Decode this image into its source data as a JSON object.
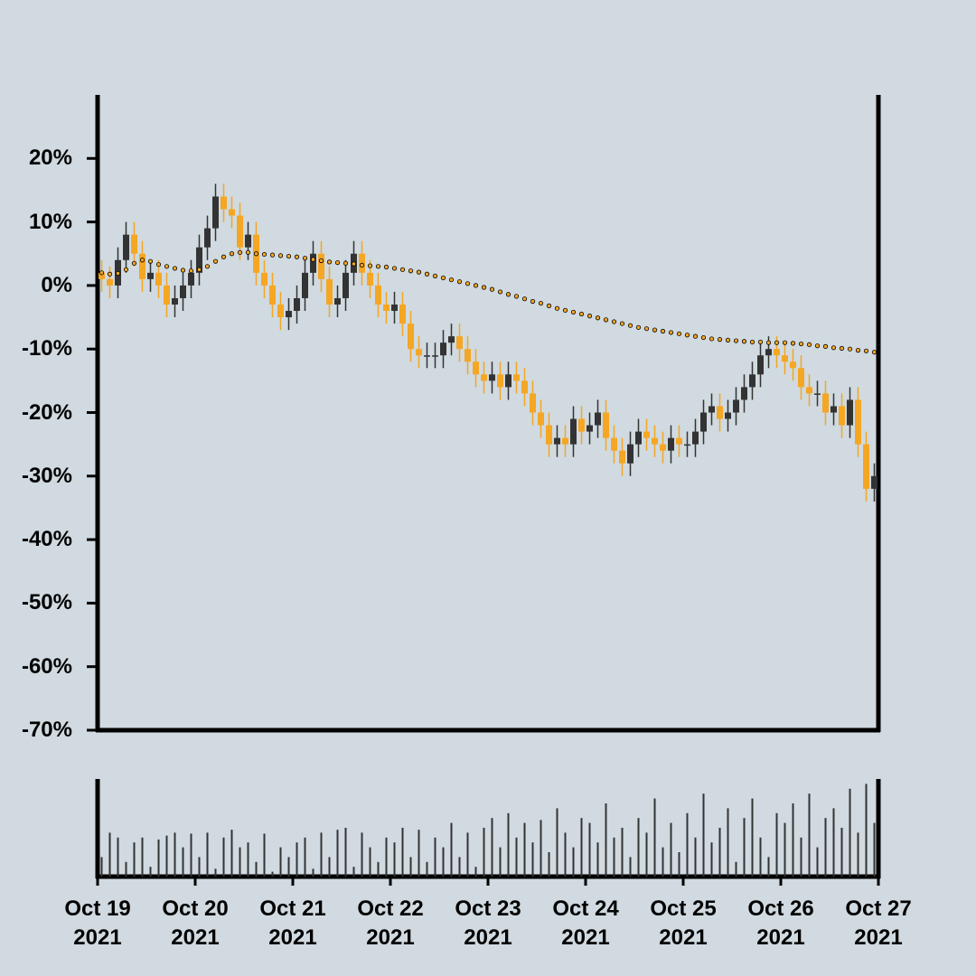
{
  "chart_data": {
    "type": "candlestick",
    "up_color": "#333333",
    "down_color": "#f5a623",
    "ma_color": "#f5a623",
    "volume_color": "#333333",
    "ylim": [
      -70,
      30
    ],
    "yticks": [
      {
        "value": 20,
        "label": "20%"
      },
      {
        "value": 10,
        "label": "10%"
      },
      {
        "value": 0,
        "label": "0%"
      },
      {
        "value": -10,
        "label": "-10%"
      },
      {
        "value": -20,
        "label": "-20%"
      },
      {
        "value": -30,
        "label": "-30%"
      },
      {
        "value": -40,
        "label": "-40%"
      },
      {
        "value": -50,
        "label": "-50%"
      },
      {
        "value": -60,
        "label": "-60%"
      },
      {
        "value": -70,
        "label": "-70%"
      }
    ],
    "xlim": [
      0,
      96
    ],
    "xticks": [
      {
        "value": 0,
        "label": "Oct 19\n2021"
      },
      {
        "value": 12,
        "label": "Oct 20\n2021"
      },
      {
        "value": 24,
        "label": "Oct 21\n2021"
      },
      {
        "value": 36,
        "label": "Oct 22\n2021"
      },
      {
        "value": 48,
        "label": "Oct 23\n2021"
      },
      {
        "value": 60,
        "label": "Oct 24\n2021"
      },
      {
        "value": 72,
        "label": "Oct 25\n2021"
      },
      {
        "value": 84,
        "label": "Oct 26\n2021"
      },
      {
        "value": 96,
        "label": "Oct 27\n2021"
      }
    ],
    "open": [
      2,
      1,
      0,
      4,
      8,
      5,
      1,
      2,
      0,
      -3,
      -2,
      0,
      2,
      6,
      9,
      14,
      12,
      11,
      6,
      8,
      2,
      0,
      -3,
      -5,
      -4,
      -2,
      2,
      5,
      1,
      -3,
      -2,
      2,
      5,
      2,
      0,
      -3,
      -4,
      -3,
      -6,
      -10,
      -11,
      -11,
      -11,
      -9,
      -8,
      -10,
      -12,
      -14,
      -15,
      -14,
      -16,
      -14,
      -15,
      -17,
      -20,
      -22,
      -25,
      -24,
      -25,
      -21,
      -23,
      -22,
      -20,
      -24,
      -26,
      -28,
      -25,
      -23,
      -24,
      -25,
      -26,
      -24,
      -25,
      -25,
      -23,
      -20,
      -19,
      -21,
      -20,
      -18,
      -16,
      -14,
      -11,
      -10,
      -11,
      -12,
      -13,
      -16,
      -17,
      -17,
      -20,
      -19,
      -22,
      -18,
      -25,
      -32
    ],
    "high": [
      4,
      3,
      6,
      10,
      10,
      7,
      4,
      4,
      2,
      0,
      2,
      4,
      8,
      11,
      16,
      16,
      14,
      13,
      10,
      10,
      4,
      2,
      -1,
      -2,
      0,
      4,
      7,
      7,
      3,
      0,
      4,
      7,
      7,
      4,
      2,
      -1,
      -1,
      -1,
      -4,
      -8,
      -9,
      -9,
      -7,
      -6,
      -6,
      -8,
      -10,
      -12,
      -12,
      -12,
      -12,
      -12,
      -13,
      -15,
      -18,
      -20,
      -22,
      -22,
      -19,
      -19,
      -20,
      -18,
      -18,
      -22,
      -24,
      -23,
      -21,
      -21,
      -22,
      -23,
      -22,
      -22,
      -23,
      -21,
      -18,
      -17,
      -17,
      -18,
      -16,
      -14,
      -12,
      -9,
      -8,
      -8,
      -9,
      -10,
      -11,
      -14,
      -15,
      -15,
      -17,
      -17,
      -16,
      -16,
      -23,
      -28
    ],
    "low": [
      -1,
      -2,
      -2,
      2,
      3,
      -1,
      -1,
      -2,
      -5,
      -5,
      -4,
      -2,
      0,
      4,
      7,
      10,
      9,
      4,
      4,
      0,
      -2,
      -5,
      -7,
      -7,
      -6,
      -4,
      0,
      -1,
      -5,
      -5,
      -4,
      0,
      0,
      -2,
      -5,
      -6,
      -6,
      -8,
      -12,
      -13,
      -13,
      -13,
      -13,
      -11,
      -12,
      -14,
      -16,
      -17,
      -17,
      -18,
      -18,
      -17,
      -19,
      -22,
      -24,
      -27,
      -27,
      -27,
      -27,
      -25,
      -25,
      -24,
      -26,
      -28,
      -30,
      -30,
      -27,
      -26,
      -27,
      -28,
      -28,
      -27,
      -27,
      -27,
      -25,
      -22,
      -23,
      -23,
      -22,
      -20,
      -18,
      -16,
      -13,
      -13,
      -14,
      -15,
      -18,
      -19,
      -19,
      -22,
      -22,
      -24,
      -24,
      -27,
      -34,
      -34
    ],
    "close": [
      1,
      0,
      4,
      8,
      5,
      1,
      2,
      0,
      -3,
      -2,
      0,
      2,
      6,
      9,
      14,
      12,
      11,
      6,
      8,
      2,
      0,
      -3,
      -5,
      -4,
      -2,
      2,
      5,
      1,
      -3,
      -2,
      2,
      5,
      2,
      0,
      -3,
      -4,
      -3,
      -6,
      -10,
      -11,
      -11,
      -11,
      -9,
      -8,
      -10,
      -12,
      -14,
      -15,
      -14,
      -16,
      -14,
      -15,
      -17,
      -20,
      -22,
      -25,
      -24,
      -25,
      -21,
      -23,
      -22,
      -20,
      -24,
      -26,
      -28,
      -25,
      -23,
      -24,
      -25,
      -26,
      -24,
      -25,
      -25,
      -23,
      -20,
      -19,
      -21,
      -20,
      -18,
      -16,
      -14,
      -11,
      -10,
      -11,
      -12,
      -13,
      -16,
      -17,
      -17,
      -20,
      -19,
      -22,
      -18,
      -25,
      -32,
      -30
    ],
    "ma": [
      2,
      1.8,
      1.9,
      2.5,
      3.5,
      4,
      3.8,
      3.3,
      3,
      2.7,
      2.4,
      2.3,
      2.5,
      3,
      3.8,
      4.5,
      5,
      5.2,
      5.2,
      5,
      4.9,
      4.8,
      4.7,
      4.6,
      4.5,
      4.3,
      4.1,
      3.9,
      3.7,
      3.6,
      3.5,
      3.4,
      3.2,
      3.1,
      3,
      2.9,
      2.7,
      2.5,
      2.3,
      2.1,
      1.8,
      1.5,
      1.2,
      0.9,
      0.6,
      0.3,
      0,
      -0.3,
      -0.6,
      -1,
      -1.4,
      -1.7,
      -2.1,
      -2.5,
      -2.8,
      -3.2,
      -3.6,
      -3.9,
      -4.2,
      -4.5,
      -4.8,
      -5.1,
      -5.4,
      -5.7,
      -6,
      -6.3,
      -6.6,
      -6.8,
      -7,
      -7.2,
      -7.4,
      -7.6,
      -7.8,
      -8,
      -8.2,
      -8.4,
      -8.5,
      -8.6,
      -8.7,
      -8.8,
      -8.9,
      -8.9,
      -9,
      -9,
      -9,
      -9.1,
      -9.2,
      -9.3,
      -9.5,
      -9.6,
      -9.8,
      -9.9,
      -10,
      -10.2,
      -10.3,
      -10.5
    ],
    "volume_ylim": [
      0,
      100
    ],
    "volume": [
      20,
      45,
      40,
      15,
      35,
      40,
      10,
      38,
      42,
      45,
      30,
      44,
      20,
      45,
      8,
      40,
      48,
      30,
      35,
      15,
      44,
      5,
      30,
      20,
      35,
      40,
      8,
      45,
      20,
      48,
      50,
      10,
      45,
      30,
      15,
      40,
      35,
      50,
      20,
      48,
      15,
      40,
      30,
      55,
      20,
      45,
      10,
      50,
      60,
      30,
      65,
      40,
      55,
      35,
      58,
      25,
      70,
      45,
      30,
      60,
      55,
      35,
      75,
      40,
      50,
      20,
      60,
      45,
      80,
      30,
      55,
      25,
      65,
      40,
      85,
      35,
      50,
      70,
      15,
      60,
      80,
      40,
      20,
      65,
      55,
      75,
      40,
      85,
      30,
      60,
      70,
      50,
      90,
      45,
      95,
      55
    ]
  }
}
